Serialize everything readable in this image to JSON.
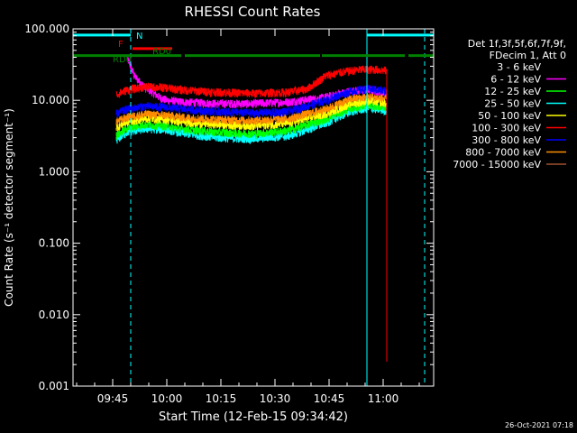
{
  "chart_data": {
    "type": "line",
    "title": "RHESSI Count Rates",
    "xlabel": "Start Time (12-Feb-15 09:34:42)",
    "ylabel": "Count Rate (s⁻¹ detector segment⁻¹)",
    "yscale": "log",
    "ylim": [
      0.001,
      100
    ],
    "xlim_minutes_after_0934": [
      0,
      100
    ],
    "x_ticks": [
      {
        "label": "09:45",
        "minute": 11
      },
      {
        "label": "10:00",
        "minute": 26
      },
      {
        "label": "10:15",
        "minute": 41
      },
      {
        "label": "10:30",
        "minute": 56
      },
      {
        "label": "10:45",
        "minute": 71
      },
      {
        "label": "11:00",
        "minute": 86
      }
    ],
    "y_ticks": [
      {
        "label": "0.001",
        "value": 0.001
      },
      {
        "label": "0.010",
        "value": 0.01
      },
      {
        "label": "0.100",
        "value": 0.1
      },
      {
        "label": "1.000",
        "value": 1
      },
      {
        "label": "10.000",
        "value": 10
      },
      {
        "label": "100.000",
        "value": 100
      }
    ],
    "legend_header": [
      "Det 1f,3f,5f,6f,7f,9f,",
      "FDecim 1, Att 0"
    ],
    "legend_position": "right",
    "series": [
      {
        "name": "3 - 6 keV",
        "color": "#000000",
        "start": 11.5,
        "profile": [
          [
            11.5,
            2.0
          ],
          [
            13,
            2.4
          ],
          [
            15,
            3.3
          ],
          [
            20,
            3.6
          ],
          [
            26,
            3.8
          ],
          [
            30,
            3.5
          ],
          [
            40,
            3.2
          ],
          [
            50,
            3.0
          ],
          [
            60,
            3.2
          ],
          [
            70,
            4.6
          ],
          [
            77,
            6.5
          ],
          [
            82,
            7.0
          ],
          [
            86.8,
            6.6
          ]
        ]
      },
      {
        "name": "6 - 12 keV",
        "color": "#ff00ff",
        "start": 15,
        "profile": [
          [
            15,
            40
          ],
          [
            17,
            22
          ],
          [
            20,
            15
          ],
          [
            22,
            13
          ],
          [
            24,
            11
          ],
          [
            26,
            10
          ],
          [
            30,
            9.5
          ],
          [
            40,
            9.0
          ],
          [
            50,
            9.0
          ],
          [
            60,
            9.5
          ],
          [
            70,
            11
          ],
          [
            77,
            13.5
          ],
          [
            82,
            14
          ],
          [
            86.8,
            13
          ]
        ]
      },
      {
        "name": "12 - 25 keV",
        "color": "#00ff00",
        "start": 12,
        "profile": [
          [
            12,
            3.2
          ],
          [
            15,
            4.1
          ],
          [
            20,
            4.6
          ],
          [
            26,
            4.4
          ],
          [
            30,
            4.0
          ],
          [
            40,
            3.6
          ],
          [
            50,
            3.4
          ],
          [
            60,
            3.8
          ],
          [
            70,
            5.5
          ],
          [
            77,
            7.8
          ],
          [
            82,
            8.6
          ],
          [
            86.8,
            8.0
          ]
        ]
      },
      {
        "name": "25 - 50 keV",
        "color": "#00ffff",
        "start": 12,
        "profile": [
          [
            12,
            2.8
          ],
          [
            15,
            3.6
          ],
          [
            20,
            4.0
          ],
          [
            26,
            3.9
          ],
          [
            30,
            3.5
          ],
          [
            40,
            3.0
          ],
          [
            50,
            2.9
          ],
          [
            60,
            3.2
          ],
          [
            70,
            4.8
          ],
          [
            77,
            7.0
          ],
          [
            82,
            7.8
          ],
          [
            86.8,
            7.2
          ]
        ]
      },
      {
        "name": "50 - 100 keV",
        "color": "#ffff00",
        "start": 12,
        "profile": [
          [
            12,
            4.2
          ],
          [
            15,
            5.0
          ],
          [
            20,
            5.6
          ],
          [
            26,
            5.4
          ],
          [
            30,
            5.0
          ],
          [
            40,
            4.6
          ],
          [
            50,
            4.4
          ],
          [
            60,
            4.8
          ],
          [
            70,
            6.5
          ],
          [
            77,
            9.0
          ],
          [
            82,
            9.8
          ],
          [
            86.8,
            9.2
          ]
        ]
      },
      {
        "name": "100 - 300 keV",
        "color": "#ff0000",
        "start": 12,
        "profile": [
          [
            12,
            12
          ],
          [
            15,
            14
          ],
          [
            20,
            15.5
          ],
          [
            26,
            15
          ],
          [
            30,
            14
          ],
          [
            40,
            13
          ],
          [
            50,
            12.5
          ],
          [
            60,
            13
          ],
          [
            65,
            14.5
          ],
          [
            70,
            22
          ],
          [
            75,
            25
          ],
          [
            80,
            27
          ],
          [
            84,
            27
          ],
          [
            86.8,
            26
          ]
        ]
      },
      {
        "name": "300 - 800 keV",
        "color": "#0000ff",
        "start": 12,
        "profile": [
          [
            12,
            6.5
          ],
          [
            15,
            7.5
          ],
          [
            20,
            8.3
          ],
          [
            26,
            8.0
          ],
          [
            30,
            7.6
          ],
          [
            40,
            7.0
          ],
          [
            50,
            6.6
          ],
          [
            60,
            7.0
          ],
          [
            70,
            10
          ],
          [
            77,
            13.5
          ],
          [
            82,
            14.5
          ],
          [
            86.8,
            13.5
          ]
        ]
      },
      {
        "name": "800 - 7000 keV",
        "color": "#ff8c00",
        "start": 12,
        "profile": [
          [
            12,
            5.0
          ],
          [
            15,
            5.8
          ],
          [
            20,
            6.4
          ],
          [
            26,
            6.2
          ],
          [
            30,
            5.8
          ],
          [
            40,
            5.4
          ],
          [
            50,
            5.2
          ],
          [
            60,
            5.6
          ],
          [
            70,
            7.5
          ],
          [
            77,
            10.5
          ],
          [
            82,
            11.2
          ],
          [
            86.8,
            10.5
          ]
        ]
      },
      {
        "name": "7000 - 15000 keV",
        "color": "#a0522d",
        "start": 0,
        "profile": []
      }
    ],
    "attenuator_bars": [
      {
        "label": "N",
        "color": "#00ffff",
        "row": 85,
        "segments": [
          [
            0,
            16
          ],
          [
            81.5,
            100
          ]
        ]
      },
      {
        "label": "F",
        "color": "#ff0000",
        "row": 52,
        "segments": [
          [
            16.5,
            27.5
          ]
        ]
      },
      {
        "label": "RD0",
        "color": "#008000",
        "row": 35,
        "segments": [
          [
            0,
            30
          ],
          [
            31,
            68.5
          ],
          [
            69,
            92
          ],
          [
            93,
            100
          ]
        ]
      }
    ],
    "drop_minute": 87,
    "vlines": [
      {
        "color": "#00ffff",
        "minute": 16,
        "style": "dashed"
      },
      {
        "color": "#00ffff",
        "minute": 81.5,
        "style": "solid"
      },
      {
        "color": "#00ffff",
        "minute": 97.5,
        "style": "dashed"
      }
    ],
    "footer_timestamp": "26-Oct-2021 07:18"
  }
}
